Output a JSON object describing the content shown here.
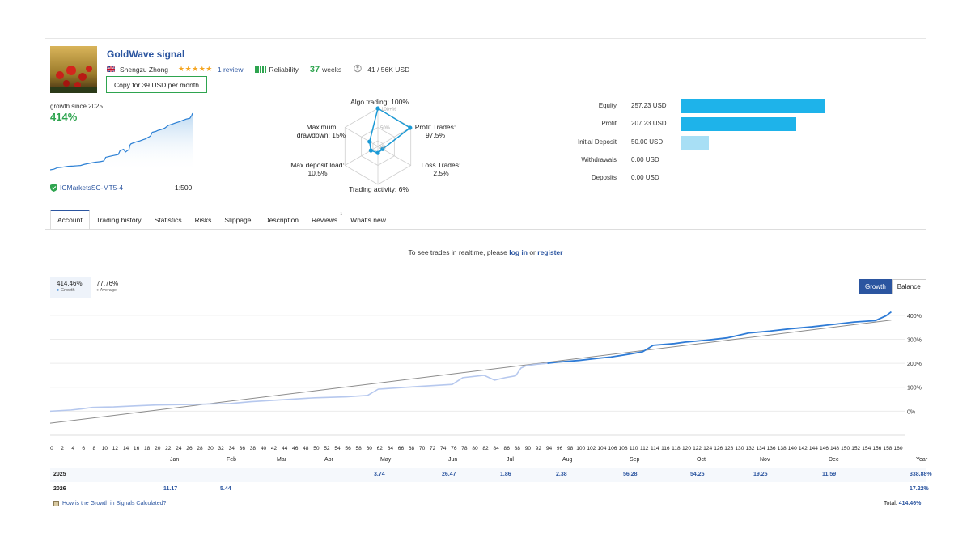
{
  "header": {
    "title": "GoldWave signal",
    "author": "Shengzu Zhong",
    "stars": "★★★★★",
    "reviews": "1 review",
    "reliability": "Reliability",
    "weeks_num": "37",
    "weeks_label": "weeks",
    "subscribers": "41 / 56K USD",
    "copy_button": "Copy for 39 USD per month"
  },
  "summary": {
    "growth_since": "growth since 2025",
    "growth_value": "414%",
    "broker": "ICMarketsSC-MT5-4",
    "leverage": "1:500"
  },
  "radar": {
    "algo": "Algo trading: 100%",
    "profit": "Profit Trades:",
    "profit_val": "97.5%",
    "loss": "Loss Trades: 2.5%",
    "activity": "Trading activity: 6%",
    "deposit_load": "Max deposit load:",
    "deposit_load_val": "10.5%",
    "drawdown": "Maximum",
    "drawdown2": "drawdown: 15%",
    "ring100": "100+%",
    "ring50": "50%",
    "ring0": "0%",
    "values": [
      100,
      97.5,
      2.5,
      6,
      10.5,
      15
    ]
  },
  "account_bars": {
    "rows": [
      {
        "label": "Equity",
        "value": "257.23 USD",
        "amount": 257.23,
        "color": "#1eb3ea"
      },
      {
        "label": "Profit",
        "value": "207.23 USD",
        "amount": 207.23,
        "color": "#1eb3ea"
      },
      {
        "label": "Initial Deposit",
        "value": "50.00 USD",
        "amount": 50.0,
        "color": "#a8dff5"
      },
      {
        "label": "Withdrawals",
        "value": "0.00 USD",
        "amount": 0,
        "color": "#a8dff5"
      },
      {
        "label": "Deposits",
        "value": "0.00 USD",
        "amount": 0,
        "color": "#a8dff5"
      }
    ]
  },
  "tabs": [
    "Account",
    "Trading history",
    "Statistics",
    "Risks",
    "Slippage",
    "Description",
    "Reviews",
    "What's new"
  ],
  "reviews_count": "1",
  "realtime": {
    "prefix": "To see trades in realtime, please",
    "login": "log in",
    "or": "or",
    "register": "register"
  },
  "stats": {
    "growth_val": "414.46%",
    "growth_label": "Growth",
    "avg_val": "77.76%",
    "avg_label": "Average"
  },
  "toggle": {
    "growth": "Growth",
    "balance": "Balance"
  },
  "chart_data": {
    "type": "line",
    "xlabel": "",
    "ylabel": "",
    "xlim": [
      0,
      160
    ],
    "ylim": [
      -100,
      440
    ],
    "y_ticks": [
      "400%",
      "300%",
      "200%",
      "100%",
      "0%"
    ],
    "x_ticks": [
      0,
      2,
      4,
      6,
      8,
      10,
      12,
      14,
      16,
      18,
      20,
      22,
      24,
      26,
      28,
      30,
      32,
      34,
      36,
      38,
      40,
      42,
      44,
      46,
      48,
      50,
      52,
      54,
      56,
      58,
      60,
      62,
      64,
      66,
      68,
      70,
      72,
      74,
      76,
      78,
      80,
      82,
      84,
      86,
      88,
      90,
      92,
      94,
      96,
      98,
      100,
      102,
      104,
      106,
      108,
      110,
      112,
      114,
      116,
      118,
      120,
      122,
      124,
      126,
      128,
      130,
      132,
      134,
      136,
      138,
      140,
      142,
      144,
      146,
      148,
      150,
      152,
      154,
      156,
      158,
      160
    ],
    "series": [
      {
        "name": "Growth",
        "points": [
          [
            0,
            0
          ],
          [
            4,
            5
          ],
          [
            6,
            10
          ],
          [
            8,
            16
          ],
          [
            12,
            18
          ],
          [
            16,
            22
          ],
          [
            20,
            26
          ],
          [
            26,
            28
          ],
          [
            30,
            30
          ],
          [
            34,
            32
          ],
          [
            38,
            40
          ],
          [
            44,
            48
          ],
          [
            50,
            56
          ],
          [
            56,
            60
          ],
          [
            60,
            66
          ],
          [
            62,
            92
          ],
          [
            66,
            98
          ],
          [
            70,
            104
          ],
          [
            76,
            112
          ],
          [
            78,
            140
          ],
          [
            82,
            150
          ],
          [
            84,
            130
          ],
          [
            86,
            140
          ],
          [
            88,
            148
          ],
          [
            89,
            180
          ],
          [
            90,
            190
          ],
          [
            92,
            196
          ],
          [
            94,
            200
          ],
          [
            96,
            205
          ],
          [
            100,
            212
          ],
          [
            104,
            222
          ],
          [
            106,
            226
          ],
          [
            110,
            240
          ],
          [
            112,
            248
          ],
          [
            114,
            275
          ],
          [
            118,
            282
          ],
          [
            120,
            288
          ],
          [
            124,
            296
          ],
          [
            128,
            306
          ],
          [
            130,
            316
          ],
          [
            132,
            326
          ],
          [
            136,
            334
          ],
          [
            140,
            344
          ],
          [
            144,
            352
          ],
          [
            148,
            362
          ],
          [
            152,
            372
          ],
          [
            156,
            378
          ],
          [
            158,
            398
          ],
          [
            159,
            414.46
          ]
        ]
      },
      {
        "name": "Average",
        "points": [
          [
            0,
            -50
          ],
          [
            159,
            380
          ]
        ]
      }
    ]
  },
  "year_table": {
    "months": [
      "Jan",
      "Feb",
      "Mar",
      "Apr",
      "May",
      "Jun",
      "Jul",
      "Aug",
      "Sep",
      "Oct",
      "Nov",
      "Dec",
      "Year"
    ],
    "rows": [
      {
        "year": "2025",
        "vals": [
          "",
          "",
          "",
          "",
          "3.74",
          "26.47",
          "1.86",
          "2.38",
          "56.28",
          "54.25",
          "19.25",
          "11.59",
          "338.88%"
        ]
      },
      {
        "year": "2026",
        "vals": [
          "11.17",
          "5.44",
          "",
          "",
          "",
          "",
          "",
          "",
          "",
          "",
          "",
          "",
          "17.22%"
        ]
      }
    ]
  },
  "footer": {
    "how": "How is the Growth in Signals Calculated?",
    "total_label": "Total:",
    "total_val": "414.46%"
  }
}
